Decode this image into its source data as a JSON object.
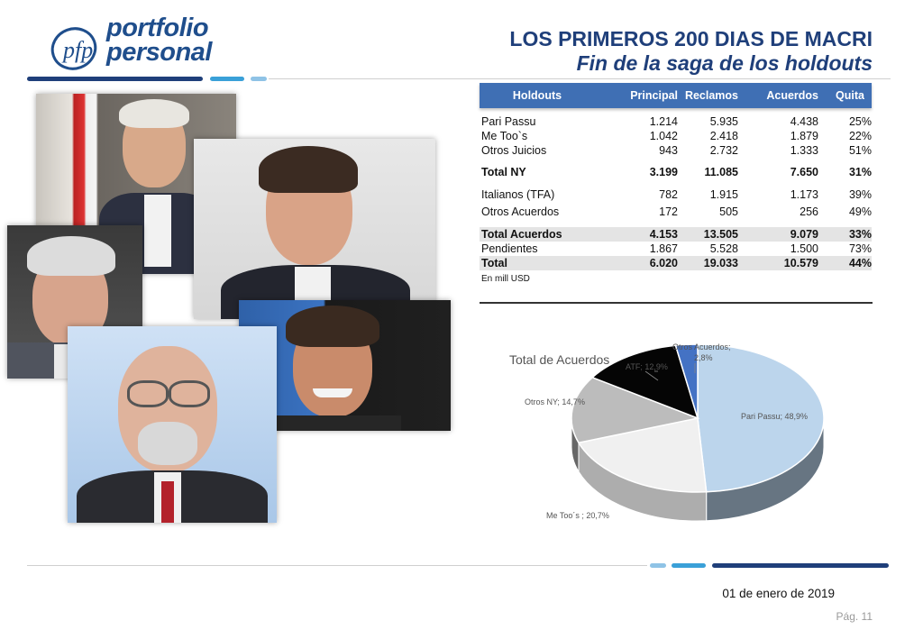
{
  "logo": {
    "monogram": "pfp",
    "line1": "portfolio",
    "line2": "personal"
  },
  "header": {
    "title": "LOS PRIMEROS 200 DIAS DE MACRI",
    "subtitle": "Fin de la saga de los holdouts"
  },
  "table": {
    "headers": [
      "Holdouts",
      "Principal",
      "Reclamos",
      "Acuerdos",
      "Quita"
    ],
    "rows": [
      {
        "label": "Pari Passu",
        "principal": "1.214",
        "reclamos": "5.935",
        "acuerdos": "4.438",
        "quita": "25%"
      },
      {
        "label": "Me Too`s",
        "principal": "1.042",
        "reclamos": "2.418",
        "acuerdos": "1.879",
        "quita": "22%"
      },
      {
        "label": "Otros Juicios",
        "principal": "943",
        "reclamos": "2.732",
        "acuerdos": "1.333",
        "quita": "51%"
      },
      {
        "label": "Total NY",
        "principal": "3.199",
        "reclamos": "11.085",
        "acuerdos": "7.650",
        "quita": "31%"
      },
      {
        "label": "Italianos (TFA)",
        "principal": "782",
        "reclamos": "1.915",
        "acuerdos": "1.173",
        "quita": "39%"
      },
      {
        "label": "Otros Acuerdos",
        "principal": "172",
        "reclamos": "505",
        "acuerdos": "256",
        "quita": "49%"
      },
      {
        "label": "Total Acuerdos",
        "principal": "4.153",
        "reclamos": "13.505",
        "acuerdos": "9.079",
        "quita": "33%"
      },
      {
        "label": "Pendientes",
        "principal": "1.867",
        "reclamos": "5.528",
        "acuerdos": "1.500",
        "quita": "73%"
      },
      {
        "label": "Total",
        "principal": "6.020",
        "reclamos": "19.033",
        "acuerdos": "10.579",
        "quita": "44%"
      }
    ],
    "note": "En mill USD"
  },
  "chart_data": {
    "type": "pie",
    "title": "Total de Acuerdos",
    "categories": [
      "Pari Passu",
      "Me Too´s ",
      "Otros NY",
      "ATF",
      "Otros Acuerdos"
    ],
    "values": [
      48.9,
      20.7,
      14.7,
      12.9,
      2.8
    ],
    "labels": [
      "Pari Passu; 48,9%",
      "Me Too´s ; 20,7%",
      "Otros NY; 14,7%",
      "ATF; 12,9%",
      "Otros Acuerdos; 2,8%"
    ],
    "colors": [
      "#bcd5ec",
      "#f0f0f0",
      "#bcbcbc",
      "#050505",
      "#4472c4"
    ]
  },
  "footer": {
    "date": "01 de enero de 2019",
    "page": "Pág. 11"
  },
  "colors": {
    "brand": "#1f3f7a",
    "table_header": "#3f6fb4",
    "accent_light": "#8fc3e6",
    "accent_mid": "#3aa0d8"
  }
}
